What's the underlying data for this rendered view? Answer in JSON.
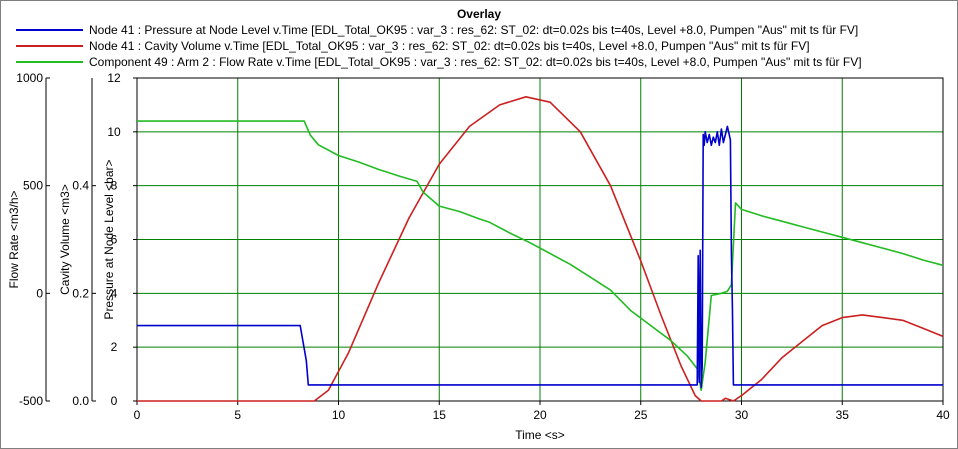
{
  "chart_data": {
    "type": "line",
    "title": "Overlay",
    "xlabel": "Time <s>",
    "xlim": [
      0,
      40
    ],
    "x_ticks": [
      0,
      5,
      10,
      15,
      20,
      25,
      30,
      35,
      40
    ],
    "grid": true,
    "legend_position": "top",
    "axes": [
      {
        "id": "pressure",
        "label": "Pressure at Node Level <bar>",
        "ylim": [
          0,
          12
        ],
        "ticks": [
          0,
          2,
          4,
          6,
          8,
          10,
          12
        ],
        "tick_labels": [
          "0",
          "2",
          "4",
          "6",
          "8",
          "10",
          "12"
        ]
      },
      {
        "id": "cavity",
        "label": "Cavity Volume <m3>",
        "ylim": [
          0,
          0.6
        ],
        "ticks": [
          0,
          0.2,
          0.4
        ],
        "tick_labels": [
          "0.0",
          "0.2",
          "0.4"
        ]
      },
      {
        "id": "flow",
        "label": "Flow Rate <m3/h>",
        "ylim": [
          -500,
          1000
        ],
        "ticks": [
          -500,
          0,
          500,
          1000
        ],
        "tick_labels": [
          "-500",
          "0",
          "500",
          "1000"
        ]
      }
    ],
    "series": [
      {
        "name": "Node 41 : Pressure at Node Level v.Time [EDL_Total_OK95 : var_3 : res_62: ST_02: dt=0.02s bis t=40s, Level +8.0, Pumpen \"Aus\" mit ts für FV]",
        "axis": "pressure",
        "color": "#0000cc",
        "x": [
          0,
          8.1,
          8.4,
          8.5,
          27.8,
          27.85,
          27.9,
          27.95,
          28.0,
          28.05,
          28.1,
          28.15,
          28.2,
          28.3,
          28.4,
          28.5,
          28.6,
          28.7,
          28.8,
          28.9,
          29.0,
          29.1,
          29.2,
          29.3,
          29.45,
          29.5,
          29.55,
          29.6,
          29.7,
          40
        ],
        "values": [
          2.8,
          2.8,
          1.5,
          0.6,
          0.6,
          5.4,
          0.7,
          5.6,
          0.5,
          1.3,
          9.9,
          9.5,
          10.0,
          9.6,
          9.9,
          9.5,
          9.8,
          9.6,
          10.0,
          9.5,
          10.1,
          9.6,
          9.9,
          10.2,
          9.7,
          5.5,
          3.5,
          0.6,
          0.6,
          0.6
        ]
      },
      {
        "name": "Node 41 : Cavity Volume v.Time [EDL_Total_OK95 : var_3 : res_62: ST_02: dt=0.02s bis t=40s, Level +8.0, Pumpen \"Aus\" mit ts für FV]",
        "axis": "cavity",
        "color": "#cc2020",
        "x": [
          0,
          8.8,
          9.5,
          10.5,
          12,
          13.5,
          15,
          16.5,
          18,
          19.3,
          20.5,
          22,
          23.5,
          25,
          26,
          27,
          27.7,
          28.0,
          28.5,
          29.0,
          29.2,
          29.6,
          30,
          31,
          32,
          33,
          34,
          35,
          36,
          37,
          38,
          39,
          40
        ],
        "values": [
          0,
          0,
          0.02,
          0.09,
          0.22,
          0.34,
          0.44,
          0.51,
          0.55,
          0.565,
          0.555,
          0.5,
          0.4,
          0.26,
          0.16,
          0.065,
          0.01,
          0,
          0,
          0,
          0.005,
          0.0,
          0.01,
          0.04,
          0.08,
          0.11,
          0.14,
          0.155,
          0.16,
          0.155,
          0.15,
          0.135,
          0.12
        ]
      },
      {
        "name": "Component 49 : Arm 2 : Flow Rate v.Time [EDL_Total_OK95 : var_3 : res_62: ST_02: dt=0.02s bis t=40s, Level +8.0, Pumpen \"Aus\" mit ts für FV]",
        "axis": "flow",
        "color": "#22bb22",
        "x": [
          0,
          8.3,
          8.6,
          9,
          10,
          11,
          12,
          13,
          13.9,
          14.2,
          15,
          16,
          17,
          17.5,
          18.5,
          19.5,
          20.5,
          21.5,
          22.5,
          23.5,
          24.5,
          25.5,
          26.5,
          27.3,
          27.8,
          28.0,
          28.2,
          28.5,
          29.0,
          29.3,
          29.5,
          29.7,
          30,
          31,
          32,
          33,
          34,
          35,
          36,
          37,
          38,
          39,
          40
        ],
        "values": [
          800,
          800,
          735,
          690,
          640,
          610,
          575,
          545,
          520,
          470,
          405,
          380,
          345,
          330,
          280,
          235,
          185,
          135,
          75,
          15,
          -80,
          -150,
          -220,
          -290,
          -350,
          -450,
          -320,
          -10,
          0,
          10,
          40,
          420,
          390,
          360,
          335,
          310,
          285,
          260,
          235,
          210,
          185,
          155,
          130
        ]
      }
    ]
  }
}
